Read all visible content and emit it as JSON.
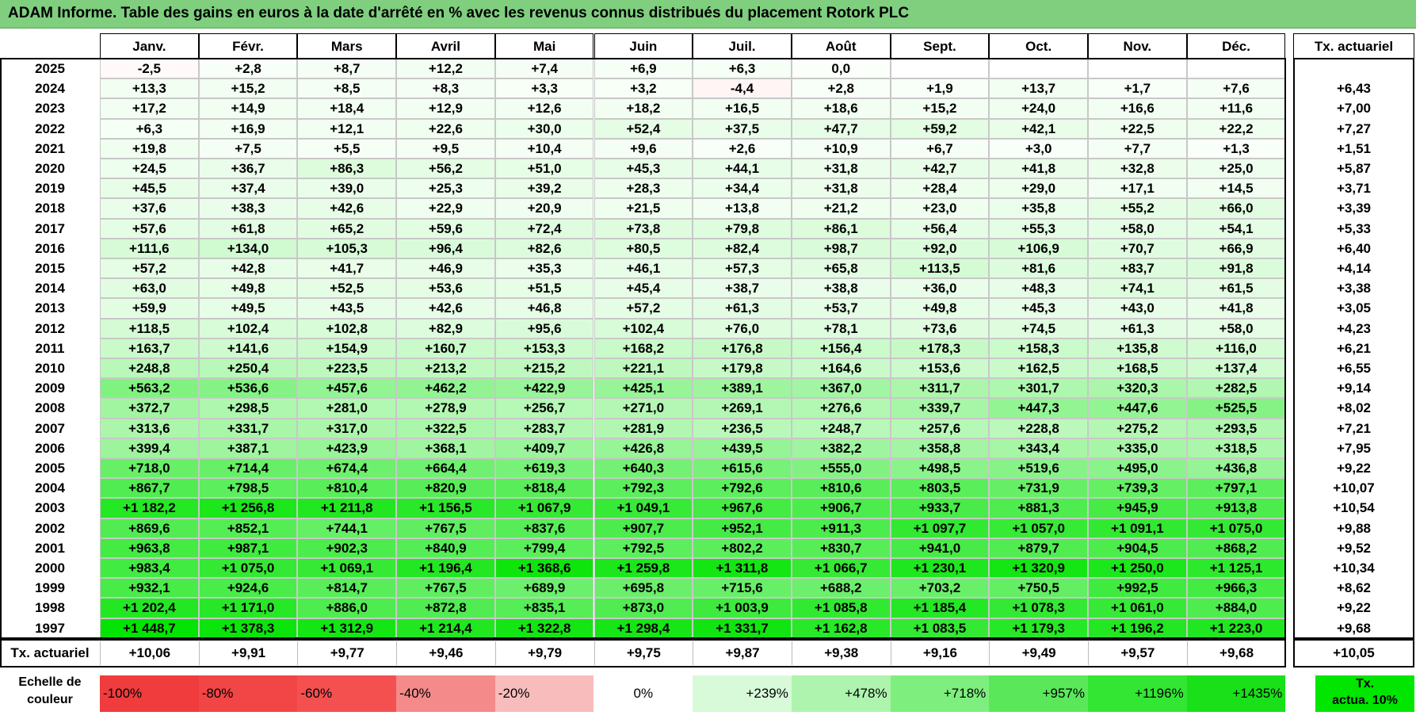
{
  "title": "ADAM Informe. Table des gains en euros à la date d'arrêté en % avec les revenus connus distribués du placement Rotork PLC",
  "months": [
    "Janv.",
    "Févr.",
    "Mars",
    "Avril",
    "Mai",
    "Juin",
    "Juil.",
    "Août",
    "Sept.",
    "Oct.",
    "Nov.",
    "Déc."
  ],
  "tx_header": "Tx. actuariel",
  "rows": [
    {
      "year": "2025",
      "values": [
        "-2,5",
        "+2,8",
        "+8,7",
        "+12,2",
        "+7,4",
        "+6,9",
        "+6,3",
        "0,0",
        "",
        "",
        "",
        ""
      ],
      "tx": ""
    },
    {
      "year": "2024",
      "values": [
        "+13,3",
        "+15,2",
        "+8,5",
        "+8,3",
        "+3,3",
        "+3,2",
        "-4,4",
        "+2,8",
        "+1,9",
        "+13,7",
        "+1,7",
        "+7,6"
      ],
      "tx": "+6,43"
    },
    {
      "year": "2023",
      "values": [
        "+17,2",
        "+14,9",
        "+18,4",
        "+12,9",
        "+12,6",
        "+18,2",
        "+16,5",
        "+18,6",
        "+15,2",
        "+24,0",
        "+16,6",
        "+11,6"
      ],
      "tx": "+7,00"
    },
    {
      "year": "2022",
      "values": [
        "+6,3",
        "+16,9",
        "+12,1",
        "+22,6",
        "+30,0",
        "+52,4",
        "+37,5",
        "+47,7",
        "+59,2",
        "+42,1",
        "+22,5",
        "+22,2"
      ],
      "tx": "+7,27"
    },
    {
      "year": "2021",
      "values": [
        "+19,8",
        "+7,5",
        "+5,5",
        "+9,5",
        "+10,4",
        "+9,6",
        "+2,6",
        "+10,9",
        "+6,7",
        "+3,0",
        "+7,7",
        "+1,3"
      ],
      "tx": "+1,51"
    },
    {
      "year": "2020",
      "values": [
        "+24,5",
        "+36,7",
        "+86,3",
        "+56,2",
        "+51,0",
        "+45,3",
        "+44,1",
        "+31,8",
        "+42,7",
        "+41,8",
        "+32,8",
        "+25,0"
      ],
      "tx": "+5,87"
    },
    {
      "year": "2019",
      "values": [
        "+45,5",
        "+37,4",
        "+39,0",
        "+25,3",
        "+39,2",
        "+28,3",
        "+34,4",
        "+31,8",
        "+28,4",
        "+29,0",
        "+17,1",
        "+14,5"
      ],
      "tx": "+3,71"
    },
    {
      "year": "2018",
      "values": [
        "+37,6",
        "+38,3",
        "+42,6",
        "+22,9",
        "+20,9",
        "+21,5",
        "+13,8",
        "+21,2",
        "+23,0",
        "+35,8",
        "+55,2",
        "+66,0"
      ],
      "tx": "+3,39"
    },
    {
      "year": "2017",
      "values": [
        "+57,6",
        "+61,8",
        "+65,2",
        "+59,6",
        "+72,4",
        "+73,8",
        "+79,8",
        "+86,1",
        "+56,4",
        "+55,3",
        "+58,0",
        "+54,1"
      ],
      "tx": "+5,33"
    },
    {
      "year": "2016",
      "values": [
        "+111,6",
        "+134,0",
        "+105,3",
        "+96,4",
        "+82,6",
        "+80,5",
        "+82,4",
        "+98,7",
        "+92,0",
        "+106,9",
        "+70,7",
        "+66,9"
      ],
      "tx": "+6,40"
    },
    {
      "year": "2015",
      "values": [
        "+57,2",
        "+42,8",
        "+41,7",
        "+46,9",
        "+35,3",
        "+46,1",
        "+57,3",
        "+65,8",
        "+113,5",
        "+81,6",
        "+83,7",
        "+91,8"
      ],
      "tx": "+4,14"
    },
    {
      "year": "2014",
      "values": [
        "+63,0",
        "+49,8",
        "+52,5",
        "+53,6",
        "+51,5",
        "+45,4",
        "+38,7",
        "+38,8",
        "+36,0",
        "+48,3",
        "+74,1",
        "+61,5"
      ],
      "tx": "+3,38"
    },
    {
      "year": "2013",
      "values": [
        "+59,9",
        "+49,5",
        "+43,5",
        "+42,6",
        "+46,8",
        "+57,2",
        "+61,3",
        "+53,7",
        "+49,8",
        "+45,3",
        "+43,0",
        "+41,8"
      ],
      "tx": "+3,05"
    },
    {
      "year": "2012",
      "values": [
        "+118,5",
        "+102,4",
        "+102,8",
        "+82,9",
        "+95,6",
        "+102,4",
        "+76,0",
        "+78,1",
        "+73,6",
        "+74,5",
        "+61,3",
        "+58,0"
      ],
      "tx": "+4,23"
    },
    {
      "year": "2011",
      "values": [
        "+163,7",
        "+141,6",
        "+154,9",
        "+160,7",
        "+153,3",
        "+168,2",
        "+176,8",
        "+156,4",
        "+178,3",
        "+158,3",
        "+135,8",
        "+116,0"
      ],
      "tx": "+6,21"
    },
    {
      "year": "2010",
      "values": [
        "+248,8",
        "+250,4",
        "+223,5",
        "+213,2",
        "+215,2",
        "+221,1",
        "+179,8",
        "+164,6",
        "+153,6",
        "+162,5",
        "+168,5",
        "+137,4"
      ],
      "tx": "+6,55"
    },
    {
      "year": "2009",
      "values": [
        "+563,2",
        "+536,6",
        "+457,6",
        "+462,2",
        "+422,9",
        "+425,1",
        "+389,1",
        "+367,0",
        "+311,7",
        "+301,7",
        "+320,3",
        "+282,5"
      ],
      "tx": "+9,14"
    },
    {
      "year": "2008",
      "values": [
        "+372,7",
        "+298,5",
        "+281,0",
        "+278,9",
        "+256,7",
        "+271,0",
        "+269,1",
        "+276,6",
        "+339,7",
        "+447,3",
        "+447,6",
        "+525,5"
      ],
      "tx": "+8,02"
    },
    {
      "year": "2007",
      "values": [
        "+313,6",
        "+331,7",
        "+317,0",
        "+322,5",
        "+283,7",
        "+281,9",
        "+236,5",
        "+248,7",
        "+257,6",
        "+228,8",
        "+275,2",
        "+293,5"
      ],
      "tx": "+7,21"
    },
    {
      "year": "2006",
      "values": [
        "+399,4",
        "+387,1",
        "+423,9",
        "+368,1",
        "+409,7",
        "+426,8",
        "+439,5",
        "+382,2",
        "+358,8",
        "+343,4",
        "+335,0",
        "+318,5"
      ],
      "tx": "+7,95"
    },
    {
      "year": "2005",
      "values": [
        "+718,0",
        "+714,4",
        "+674,4",
        "+664,4",
        "+619,3",
        "+640,3",
        "+615,6",
        "+555,0",
        "+498,5",
        "+519,6",
        "+495,0",
        "+436,8"
      ],
      "tx": "+9,22"
    },
    {
      "year": "2004",
      "values": [
        "+867,7",
        "+798,5",
        "+810,4",
        "+820,9",
        "+818,4",
        "+792,3",
        "+792,6",
        "+810,6",
        "+803,5",
        "+731,9",
        "+739,3",
        "+797,1"
      ],
      "tx": "+10,07"
    },
    {
      "year": "2003",
      "values": [
        "+1 182,2",
        "+1 256,8",
        "+1 211,8",
        "+1 156,5",
        "+1 067,9",
        "+1 049,1",
        "+967,6",
        "+906,7",
        "+933,7",
        "+881,3",
        "+945,9",
        "+913,8"
      ],
      "tx": "+10,54"
    },
    {
      "year": "2002",
      "values": [
        "+869,6",
        "+852,1",
        "+744,1",
        "+767,5",
        "+837,6",
        "+907,7",
        "+952,1",
        "+911,3",
        "+1 097,7",
        "+1 057,0",
        "+1 091,1",
        "+1 075,0"
      ],
      "tx": "+9,88"
    },
    {
      "year": "2001",
      "values": [
        "+963,8",
        "+987,1",
        "+902,3",
        "+840,9",
        "+799,4",
        "+792,5",
        "+802,2",
        "+830,7",
        "+941,0",
        "+879,7",
        "+904,5",
        "+868,2"
      ],
      "tx": "+9,52"
    },
    {
      "year": "2000",
      "values": [
        "+983,4",
        "+1 075,0",
        "+1 069,1",
        "+1 196,4",
        "+1 368,6",
        "+1 259,8",
        "+1 311,8",
        "+1 066,7",
        "+1 230,1",
        "+1 320,9",
        "+1 250,0",
        "+1 125,1"
      ],
      "tx": "+10,34"
    },
    {
      "year": "1999",
      "values": [
        "+932,1",
        "+924,6",
        "+814,7",
        "+767,5",
        "+689,9",
        "+695,8",
        "+715,6",
        "+688,2",
        "+703,2",
        "+750,5",
        "+992,5",
        "+966,3"
      ],
      "tx": "+8,62"
    },
    {
      "year": "1998",
      "values": [
        "+1 202,4",
        "+1 171,0",
        "+886,0",
        "+872,8",
        "+835,1",
        "+873,0",
        "+1 003,9",
        "+1 085,8",
        "+1 185,4",
        "+1 078,3",
        "+1 061,0",
        "+884,0"
      ],
      "tx": "+9,22"
    },
    {
      "year": "1997",
      "values": [
        "+1 448,7",
        "+1 378,3",
        "+1 312,9",
        "+1 214,4",
        "+1 322,8",
        "+1 298,4",
        "+1 331,7",
        "+1 162,8",
        "+1 083,5",
        "+1 179,3",
        "+1 196,2",
        "+1 223,0"
      ],
      "tx": "+9,68"
    }
  ],
  "footer": {
    "label": "Tx. actuariel",
    "values": [
      "+10,06",
      "+9,91",
      "+9,77",
      "+9,46",
      "+9,79",
      "+9,75",
      "+9,87",
      "+9,38",
      "+9,16",
      "+9,49",
      "+9,57",
      "+9,68"
    ],
    "tx": "+10,05"
  },
  "legend": {
    "label_line1": "Echelle de",
    "label_line2": "couleur",
    "items": [
      {
        "label": "-100%",
        "color": "#f03c3c",
        "align": "left"
      },
      {
        "label": "-80%",
        "color": "#f24545",
        "align": "left"
      },
      {
        "label": "-60%",
        "color": "#f45050",
        "align": "left"
      },
      {
        "label": "-40%",
        "color": "#f48a8a",
        "align": "left"
      },
      {
        "label": "-20%",
        "color": "#f8bcbc",
        "align": "left"
      },
      {
        "label": "0%",
        "color": "#ffffff",
        "align": "center"
      },
      {
        "label": "+239%",
        "color": "#d8fad8",
        "align": "right"
      },
      {
        "label": "+478%",
        "color": "#aef4ae",
        "align": "right"
      },
      {
        "label": "+718%",
        "color": "#7eef7e",
        "align": "right"
      },
      {
        "label": "+957%",
        "color": "#5ae85a",
        "align": "right"
      },
      {
        "label": "+1196%",
        "color": "#33e633",
        "align": "right"
      },
      {
        "label": "+1435%",
        "color": "#19e019",
        "align": "right"
      }
    ],
    "tx_line1": "Tx.",
    "tx_line2": "actua. 10%"
  }
}
